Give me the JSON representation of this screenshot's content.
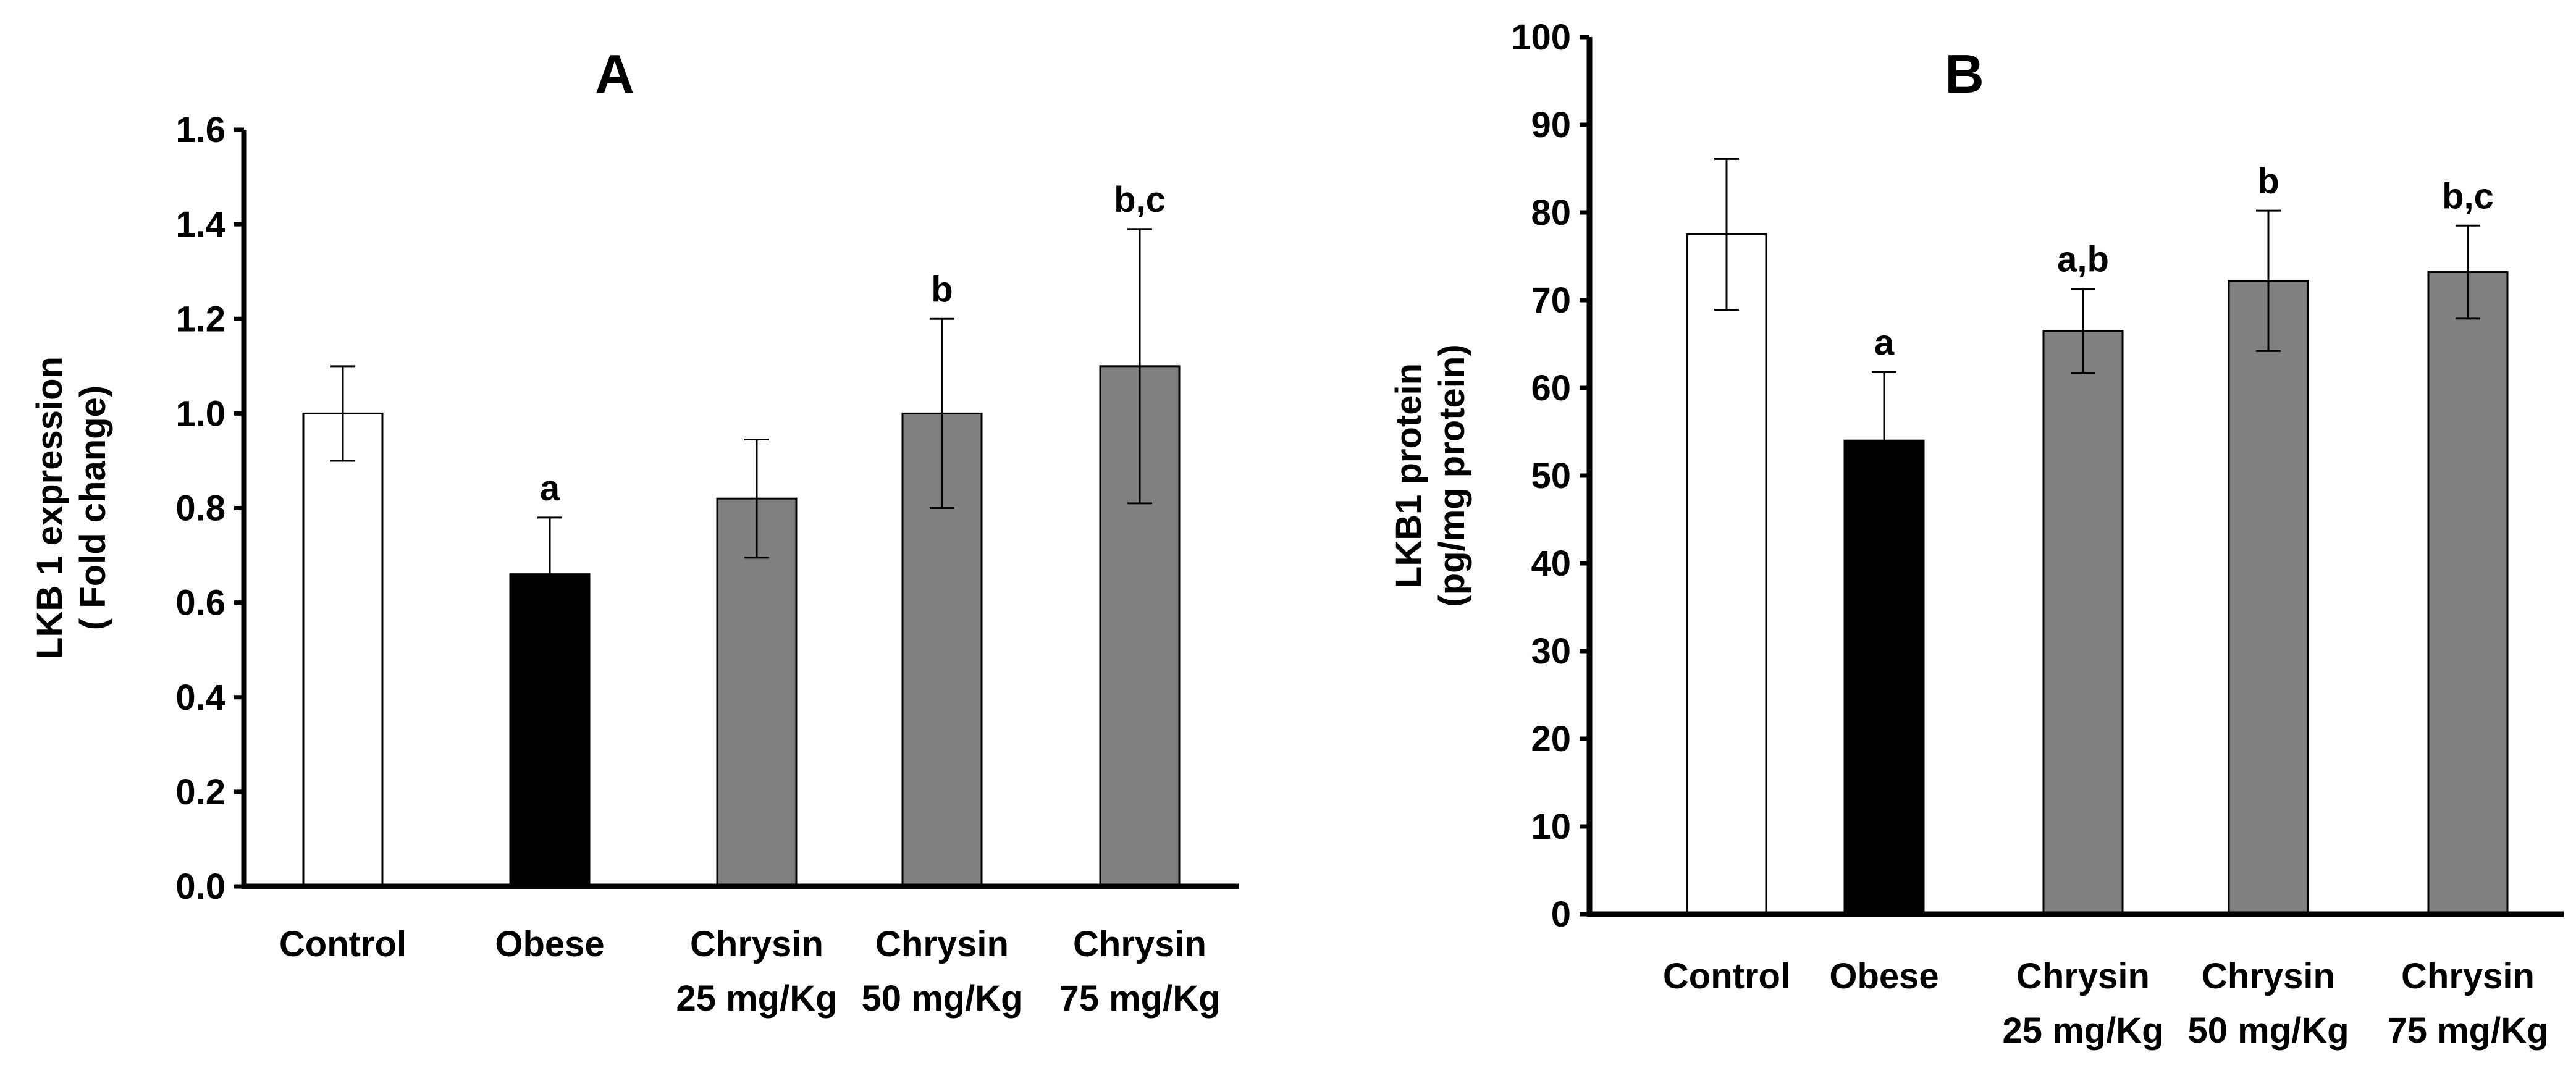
{
  "chart_data": [
    {
      "type": "bar",
      "title": "A",
      "categories": [
        [
          "Control"
        ],
        [
          "Obese"
        ],
        [
          "Chrysin",
          "25 mg/Kg"
        ],
        [
          "Chrysin",
          "50 mg/Kg"
        ],
        [
          "Chrysin",
          "75 mg/Kg"
        ]
      ],
      "values": [
        1.0,
        0.66,
        0.82,
        1.0,
        1.1
      ],
      "errors": [
        0.1,
        0.12,
        0.125,
        0.2,
        0.29
      ],
      "labels": [
        "",
        "a",
        "",
        "b",
        "b,c"
      ],
      "colors": [
        "#ffffff",
        "#000000",
        "#808080",
        "#808080",
        "#808080"
      ],
      "ylabel": [
        "LKB 1 expression",
        "( Fold change)"
      ],
      "xlabel": "",
      "ylim": [
        0,
        1.6
      ],
      "yticks": [
        "0.0",
        "0.2",
        "0.4",
        "0.6",
        "0.8",
        "1.0",
        "1.2",
        "1.4",
        "1.6"
      ],
      "grid": false
    },
    {
      "type": "bar",
      "title": "B",
      "categories": [
        [
          "Control"
        ],
        [
          "Obese"
        ],
        [
          "Chrysin",
          "25 mg/Kg"
        ],
        [
          "Chrysin",
          "50 mg/Kg"
        ],
        [
          "Chrysin",
          "75 mg/Kg"
        ]
      ],
      "values": [
        77.5,
        54,
        66.5,
        72.2,
        73.2
      ],
      "errors": [
        8.6,
        7.8,
        4.8,
        8.0,
        5.3
      ],
      "labels": [
        "",
        "a",
        "a,b",
        "b",
        "b,c"
      ],
      "colors": [
        "#ffffff",
        "#000000",
        "#808080",
        "#808080",
        "#808080"
      ],
      "ylabel": [
        "LKB1 protein",
        "(pg/mg protein)"
      ],
      "xlabel": "",
      "ylim": [
        0,
        100
      ],
      "yticks": [
        "0",
        "10",
        "20",
        "30",
        "40",
        "50",
        "60",
        "70",
        "80",
        "90",
        "100"
      ],
      "grid": false
    }
  ]
}
